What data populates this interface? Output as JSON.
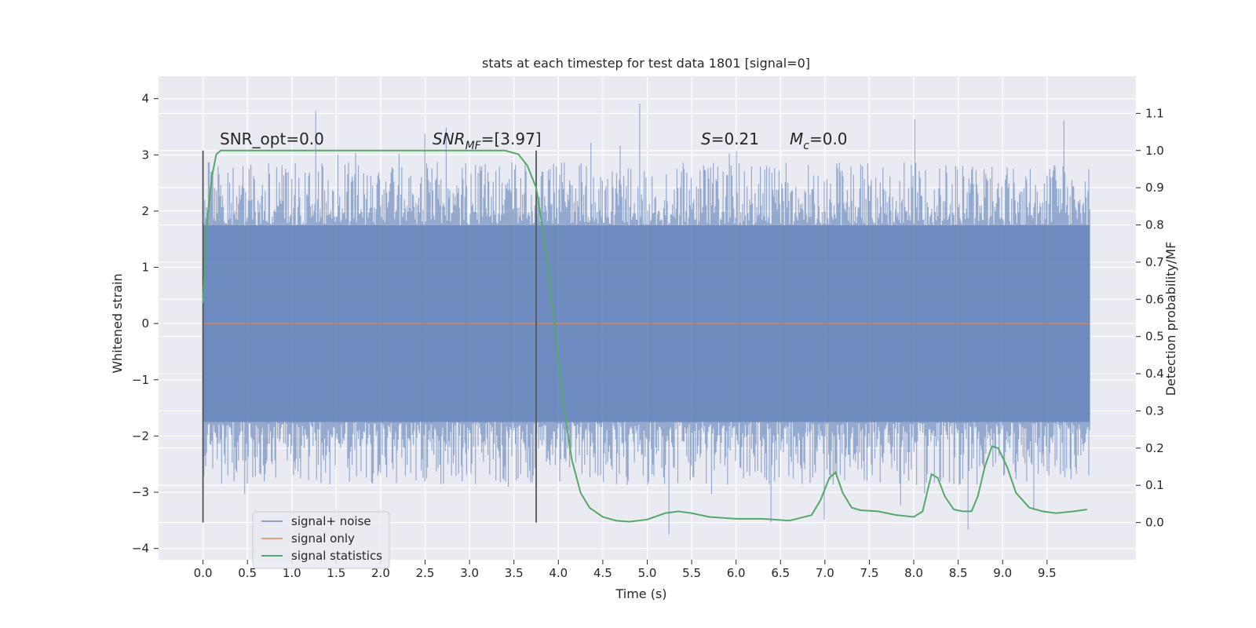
{
  "chart_data": {
    "type": "line",
    "title": "stats at each timestep for test data 1801 [signal=0]",
    "xlabel": "Time (s)",
    "ylabel": "Whitened strain",
    "y2label": "Detection probability/MF",
    "xlim": [
      -0.5,
      10.5
    ],
    "ylim": [
      -4.2,
      4.4
    ],
    "y2lim": [
      -0.1,
      1.2
    ],
    "x_ticks": [
      "0.0",
      "0.5",
      "1.0",
      "1.5",
      "2.0",
      "2.5",
      "3.0",
      "3.5",
      "4.0",
      "4.5",
      "5.0",
      "5.5",
      "6.0",
      "6.5",
      "7.0",
      "7.5",
      "8.0",
      "8.5",
      "9.0",
      "9.5"
    ],
    "y_ticks": [
      "−4",
      "−3",
      "−2",
      "−1",
      "0",
      "1",
      "2",
      "3",
      "4"
    ],
    "y2_ticks": [
      "0.0",
      "0.1",
      "0.2",
      "0.3",
      "0.4",
      "0.5",
      "0.6",
      "0.7",
      "0.8",
      "0.9",
      "1.0",
      "1.1"
    ],
    "grid": true,
    "legend_position": "lower-left",
    "colors": {
      "background": "#eaeaf2",
      "grid": "#ffffff",
      "noise": "#4c72b0",
      "signal": "#dd8452",
      "statistics": "#55a868",
      "marker": "#555555"
    },
    "annotations": {
      "snr_opt": "SNR_opt=0.0",
      "snr_mf_base": "SNR",
      "snr_mf_sub": "MF",
      "snr_mf_val": "=[3.97]",
      "s_sym": "S",
      "s_val": "=0.21",
      "mc_base": "M",
      "mc_sub": "c",
      "mc_val": "=0.0"
    },
    "vertical_markers_x": [
      0.0,
      3.75
    ],
    "series": [
      {
        "name": "signal+ noise",
        "kind": "noise-strain",
        "x_range": [
          0.0,
          9.98
        ],
        "core_range": [
          -1.75,
          1.75
        ],
        "max": 4.0,
        "min": -3.85
      },
      {
        "name": "signal only",
        "x": [
          0.0,
          9.98
        ],
        "y": [
          0.0,
          0.0
        ]
      },
      {
        "name": "signal statistics",
        "axis": "right",
        "x": [
          0.0,
          0.05,
          0.1,
          0.15,
          0.2,
          0.5,
          1.0,
          2.0,
          3.0,
          3.4,
          3.55,
          3.65,
          3.75,
          3.85,
          3.95,
          4.05,
          4.15,
          4.25,
          4.35,
          4.5,
          4.65,
          4.8,
          5.0,
          5.2,
          5.35,
          5.5,
          5.7,
          6.0,
          6.3,
          6.6,
          6.85,
          6.95,
          7.05,
          7.12,
          7.2,
          7.3,
          7.4,
          7.6,
          7.8,
          8.0,
          8.1,
          8.2,
          8.27,
          8.35,
          8.45,
          8.55,
          8.65,
          8.72,
          8.8,
          8.88,
          8.95,
          9.05,
          9.15,
          9.3,
          9.45,
          9.6,
          9.8,
          9.95
        ],
        "y": [
          0.59,
          0.82,
          0.93,
          0.99,
          1.0,
          1.0,
          1.0,
          1.0,
          1.0,
          1.0,
          0.99,
          0.96,
          0.9,
          0.75,
          0.55,
          0.33,
          0.17,
          0.08,
          0.04,
          0.015,
          0.005,
          0.002,
          0.008,
          0.025,
          0.03,
          0.025,
          0.015,
          0.01,
          0.01,
          0.005,
          0.02,
          0.06,
          0.12,
          0.135,
          0.08,
          0.04,
          0.033,
          0.03,
          0.02,
          0.015,
          0.03,
          0.13,
          0.12,
          0.07,
          0.035,
          0.03,
          0.03,
          0.07,
          0.15,
          0.205,
          0.2,
          0.15,
          0.08,
          0.04,
          0.03,
          0.025,
          0.03,
          0.035
        ]
      }
    ]
  }
}
